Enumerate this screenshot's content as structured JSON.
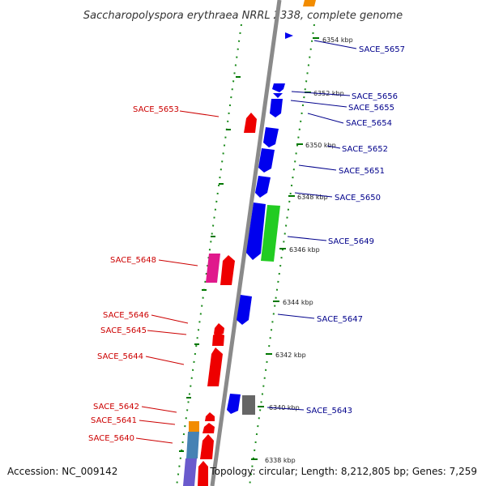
{
  "title": "Saccharopolyspora erythraea NRRL 2338, complete genome",
  "footer": {
    "accession": "Accession: NC_009142",
    "topology": "Topology: circular; Length: 8,212,805 bp; Genes: 7,259"
  },
  "colors": {
    "backbone": "#8a8a8a",
    "forward_gene": "#0000ee",
    "reverse_gene": "#ee0000",
    "pink_gene": "#e0198c",
    "green_gene": "#22cc22",
    "gray_gene": "#666666",
    "orange_gene": "#f28c00",
    "steel_gene": "#4682b4",
    "purple_gene": "#6a5acd",
    "tick": "#007700",
    "forward_label": "#00008b",
    "reverse_label": "#cc0000"
  },
  "scale_kbp": [
    "6354 kbp",
    "6352 kbp",
    "6350 kbp",
    "6348 kbp",
    "6346 kbp",
    "6344 kbp",
    "6342 kbp",
    "6340 kbp",
    "6338 kbp"
  ],
  "forward_labels": [
    "SACE_5657",
    "SACE_5656",
    "SACE_5655",
    "SACE_5654",
    "SACE_5652",
    "SACE_5651",
    "SACE_5650",
    "SACE_5649",
    "SACE_5647",
    "SACE_5643"
  ],
  "reverse_labels": [
    "SACE_5653",
    "SACE_5648",
    "SACE_5646",
    "SACE_5645",
    "SACE_5644",
    "SACE_5642",
    "SACE_5641",
    "SACE_5640"
  ]
}
